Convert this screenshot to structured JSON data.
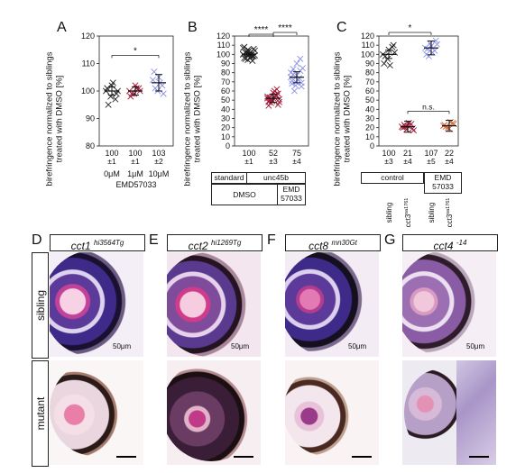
{
  "colors": {
    "black": "#222222",
    "red": "#a01835",
    "blue": "#8a90e8",
    "orange": "#d0673a"
  },
  "panels": {
    "A": "A",
    "B": "B",
    "C": "C",
    "D": "D",
    "E": "E",
    "F": "F",
    "G": "G"
  },
  "ylabel_lines": [
    "birefringence normalized to siblings",
    "treated with DMSO [%]"
  ],
  "chart_data": [
    {
      "id": "A",
      "type": "scatter",
      "title": "",
      "ylabel": "birefringence normalized to siblings treated with DMSO [%]",
      "ylim": [
        80,
        120
      ],
      "yticks": [
        80,
        90,
        100,
        110,
        120
      ],
      "categories": [
        "0μM",
        "1μM",
        "10μM"
      ],
      "xlabel": "EMD57033",
      "series": [
        {
          "color": "#222222",
          "values": [
            100,
            98,
            97,
            101,
            102,
            99,
            95,
            103,
            100
          ]
        },
        {
          "color": "#a01835",
          "values": [
            100,
            99,
            101,
            98,
            102,
            100,
            99,
            101
          ]
        },
        {
          "color": "#8a90e8",
          "values": [
            104,
            100,
            102,
            107,
            105,
            99,
            101,
            103
          ]
        }
      ],
      "means": [
        100,
        100,
        103
      ],
      "n_labels": [
        "100",
        "100",
        "103"
      ],
      "sd_labels": [
        "±1",
        "±1",
        "±2"
      ],
      "significance": [
        {
          "from": 0,
          "to": 2,
          "label": "*"
        }
      ]
    },
    {
      "id": "B",
      "type": "scatter",
      "title": "",
      "ylim": [
        0,
        120
      ],
      "yticks": [
        0,
        10,
        20,
        30,
        40,
        50,
        60,
        70,
        80,
        90,
        100,
        110,
        120
      ],
      "categories": [
        "standard",
        "unc45b",
        "unc45b"
      ],
      "group_labels": {
        "top": [
          "standard",
          "unc45b"
        ],
        "bottom": [
          "DMSO",
          "EMD\n57033"
        ]
      },
      "series": [
        {
          "color": "#222222",
          "values": [
            100,
            102,
            98,
            96,
            104,
            106,
            95,
            101,
            99,
            103,
            97,
            100,
            105,
            93,
            108,
            100,
            98,
            102,
            96,
            104,
            101,
            99,
            107,
            94
          ]
        },
        {
          "color": "#a01835",
          "values": [
            52,
            50,
            55,
            48,
            58,
            45,
            53,
            60,
            51,
            47,
            56,
            54,
            49,
            62,
            44,
            52,
            57,
            50,
            53,
            48
          ]
        },
        {
          "color": "#8a90e8",
          "values": [
            75,
            70,
            82,
            68,
            90,
            65,
            78,
            72,
            85,
            60,
            74,
            80,
            66,
            95,
            71,
            77,
            69,
            84
          ]
        }
      ],
      "means": [
        100,
        52,
        75
      ],
      "n_labels": [
        "100",
        "52",
        "75"
      ],
      "sd_labels": [
        "±1",
        "±3",
        "±4"
      ],
      "significance": [
        {
          "from": 0,
          "to": 1,
          "label": "****"
        },
        {
          "from": 1,
          "to": 2,
          "label": "****"
        }
      ]
    },
    {
      "id": "C",
      "type": "scatter",
      "title": "",
      "ylim": [
        0,
        120
      ],
      "yticks": [
        0,
        10,
        20,
        30,
        40,
        50,
        60,
        70,
        80,
        90,
        100,
        110,
        120
      ],
      "categories": [
        "sibling",
        "cct3 sa1761",
        "sibling",
        "cct3 sa1761"
      ],
      "tick_labels": [
        {
          "main": "sibling",
          "sup": ""
        },
        {
          "main": "cct3",
          "sup": "sa1761"
        },
        {
          "main": "sibling",
          "sup": ""
        },
        {
          "main": "cct3",
          "sup": "sa1761"
        }
      ],
      "group_labels": [
        "control",
        "EMD\n57033"
      ],
      "series": [
        {
          "color": "#222222",
          "values": [
            100,
            95,
            108,
            90,
            105,
            110,
            98,
            88,
            102
          ]
        },
        {
          "color": "#a01835",
          "values": [
            21,
            18,
            24,
            20,
            22,
            19,
            23,
            25,
            17,
            21
          ]
        },
        {
          "color": "#8a90e8",
          "values": [
            107,
            112,
            104,
            100,
            109,
            115,
            106,
            102,
            111,
            98
          ]
        },
        {
          "color": "#d0673a",
          "values": [
            22,
            20,
            25,
            23,
            19,
            24,
            21,
            26
          ]
        }
      ],
      "means": [
        100,
        21,
        107,
        22
      ],
      "n_labels": [
        "100",
        "21",
        "107",
        "22"
      ],
      "sd_labels": [
        "±3",
        "±4",
        "±5",
        "±4"
      ],
      "significance": [
        {
          "from": 0,
          "to": 2,
          "label": "*"
        },
        {
          "from": 1,
          "to": 3,
          "label": "n.s."
        }
      ]
    }
  ],
  "histology": {
    "genes": [
      {
        "name": "cct1",
        "sup": "hi3564Tg"
      },
      {
        "name": "cct2",
        "sup": "hi1269Tg"
      },
      {
        "name": "cct8",
        "sup": "mn30Gt"
      },
      {
        "name": "cct4",
        "sup": "-14"
      }
    ],
    "rows": [
      "sibling",
      "mutant"
    ],
    "scale_label": "50μm"
  }
}
